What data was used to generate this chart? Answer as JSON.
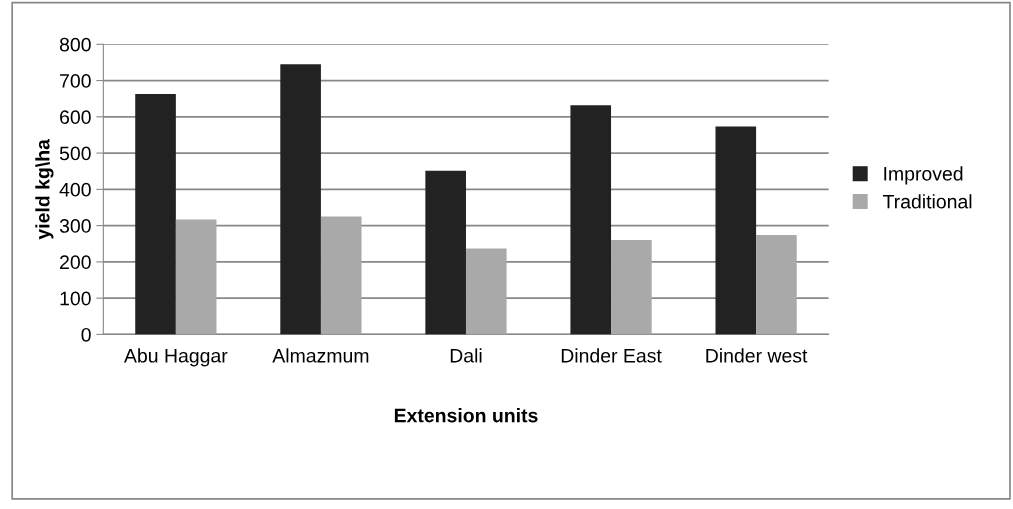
{
  "chart_data": {
    "type": "bar",
    "xlabel": "Extension units",
    "ylabel": "yield kg\\ha",
    "categories": [
      "Abu Haggar",
      "Almazmum",
      "Dali",
      "Dinder East",
      "Dinder west"
    ],
    "series": [
      {
        "name": "Improved",
        "color": "#222222",
        "values": [
          663,
          745,
          451,
          632,
          573
        ]
      },
      {
        "name": "Traditional",
        "color": "#a9a9a9",
        "values": [
          317,
          325,
          237,
          260,
          274
        ]
      }
    ],
    "ylim": [
      0,
      800
    ],
    "yticks": [
      0,
      100,
      200,
      300,
      400,
      500,
      600,
      700,
      800
    ],
    "grid": "y",
    "legend": "right"
  }
}
